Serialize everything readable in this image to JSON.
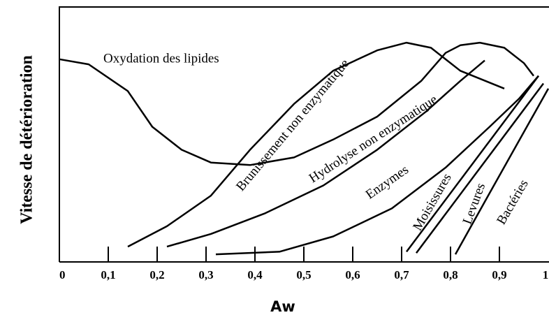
{
  "chart_data": {
    "type": "line",
    "ylabel": "Vitesse de détérioration",
    "xlabel": "Aw",
    "color": "#000000",
    "xlim": [
      0,
      1
    ],
    "ylim": [
      0,
      100
    ],
    "xticks": [
      0,
      {
        "value": 0.1,
        "label": "0,1"
      },
      {
        "value": 0.2,
        "label": "0,2"
      },
      {
        "value": 0.3,
        "label": "0,3"
      },
      {
        "value": 0.4,
        "label": "0,4"
      },
      {
        "value": 0.5,
        "label": "0,5"
      },
      {
        "value": 0.6,
        "label": "0,6"
      },
      {
        "value": 0.7,
        "label": "0,7"
      },
      {
        "value": 0.8,
        "label": "0,8"
      },
      {
        "value": 0.9,
        "label": "0,9"
      },
      1
    ],
    "series": [
      {
        "name": "Oxydation des lipides",
        "x": [
          0,
          0.06,
          0.14,
          0.19,
          0.25,
          0.31,
          0.39,
          0.48,
          0.56,
          0.65,
          0.74,
          0.79,
          0.82,
          0.86,
          0.91,
          0.95,
          0.97
        ],
        "values": [
          79.5,
          77.5,
          67,
          53,
          44,
          39,
          38,
          41,
          48,
          57,
          71,
          82,
          85,
          86,
          84,
          78,
          73
        ]
      },
      {
        "name": "Brunissement non enzymatique",
        "x": [
          0.14,
          0.22,
          0.31,
          0.39,
          0.48,
          0.56,
          0.65,
          0.71,
          0.76,
          0.82,
          0.91
        ],
        "values": [
          6,
          14,
          26,
          44,
          62,
          75,
          83,
          86,
          84,
          75,
          68
        ]
      },
      {
        "name": "Hydrolyse non enzymatique",
        "x": [
          0.22,
          0.31,
          0.42,
          0.54,
          0.65,
          0.75,
          0.82,
          0.87
        ],
        "values": [
          6,
          11,
          19,
          30,
          44,
          59,
          71,
          79
        ]
      },
      {
        "name": "Enzymes",
        "x": [
          0.32,
          0.45,
          0.56,
          0.68,
          0.79,
          0.88,
          0.94,
          0.98
        ],
        "values": [
          3,
          4,
          10,
          21,
          37,
          53,
          64,
          73
        ]
      },
      {
        "name": "Moisissures",
        "x": [
          0.71,
          0.98
        ],
        "values": [
          4,
          73
        ]
      },
      {
        "name": "Levures",
        "x": [
          0.73,
          0.99
        ],
        "values": [
          3.5,
          70
        ]
      },
      {
        "name": "Bactéries",
        "x": [
          0.81,
          0.88,
          1.0
        ],
        "values": [
          3,
          27,
          68
        ]
      }
    ]
  }
}
